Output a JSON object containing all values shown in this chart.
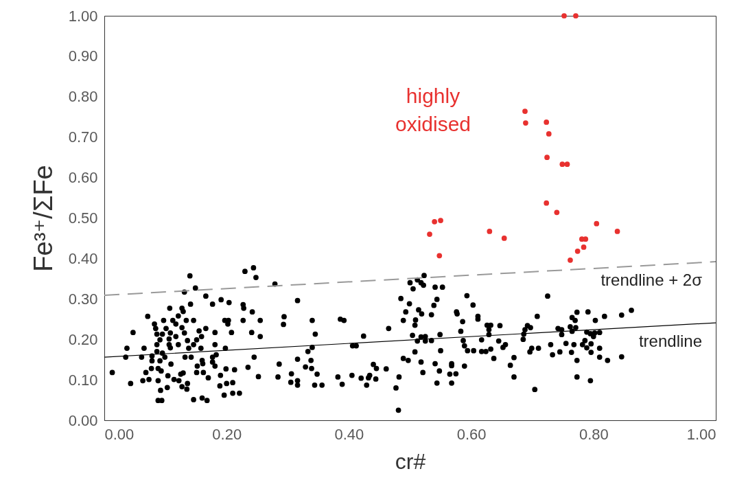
{
  "chart_data": {
    "type": "scatter",
    "xlabel": "cr#",
    "ylabel": "Fe³⁺/ΣFe",
    "marker": "circle",
    "xlim": [
      0,
      1
    ],
    "ylim": [
      0,
      1
    ],
    "xticks": [
      {
        "value": 0,
        "label": "0.00"
      },
      {
        "value": 0.2,
        "label": "0.20"
      },
      {
        "value": 0.4,
        "label": "0.40"
      },
      {
        "value": 0.6,
        "label": "0.60"
      },
      {
        "value": 0.8,
        "label": "0.80"
      },
      {
        "value": 1,
        "label": "1.00"
      }
    ],
    "yticks": [
      {
        "value": 0,
        "label": "0.00"
      },
      {
        "value": 0.1,
        "label": "0.10"
      },
      {
        "value": 0.2,
        "label": "0.20"
      },
      {
        "value": 0.3,
        "label": "0.30"
      },
      {
        "value": 0.4,
        "label": "0.40"
      },
      {
        "value": 0.5,
        "label": "0.50"
      },
      {
        "value": 0.6,
        "label": "0.60"
      },
      {
        "value": 0.7,
        "label": "0.70"
      },
      {
        "value": 0.8,
        "label": "0.80"
      },
      {
        "value": 0.9,
        "label": "0.90"
      },
      {
        "value": 1,
        "label": "1.00"
      }
    ],
    "series": [
      {
        "color": "#000000",
        "x": [
          0.14,
          0.149,
          0.131,
          0.23,
          0.244,
          0.248,
          0.279,
          0.316,
          0.166,
          0.177,
          0.191,
          0.204,
          0.227,
          0.228,
          0.242,
          0.141,
          0.107,
          0.127,
          0.129,
          0.121,
          0.071,
          0.097,
          0.112,
          0.134,
          0.146,
          0.197,
          0.203,
          0.202,
          0.227,
          0.255,
          0.294,
          0.293,
          0.082,
          0.084,
          0.117,
          0.101,
          0.127,
          0.131,
          0.047,
          0.166,
          0.155,
          0.181,
          0.208,
          0.241,
          0.255,
          0.086,
          0.095,
          0.108,
          0.117,
          0.091,
          0.106,
          0.159,
          0.151,
          0.136,
          0.146,
          0.121,
          0.086,
          0.106,
          0.181,
          0.037,
          0.065,
          0.138,
          0.158,
          0.198,
          0.108,
          0.086,
          0.095,
          0.035,
          0.061,
          0.078,
          0.099,
          0.132,
          0.142,
          0.177,
          0.183,
          0.245,
          0.333,
          0.078,
          0.091,
          0.109,
          0.16,
          0.161,
          0.177,
          0.181,
          0.286,
          0.316,
          0.329,
          0.013,
          0.068,
          0.077,
          0.088,
          0.093,
          0.152,
          0.151,
          0.162,
          0.199,
          0.213,
          0.235,
          0.19,
          0.17,
          0.129,
          0.125,
          0.104,
          0.252,
          0.284,
          0.306,
          0.043,
          0.063,
          0.073,
          0.088,
          0.114,
          0.122,
          0.136,
          0.127,
          0.135,
          0.103,
          0.092,
          0.189,
          0.2,
          0.21,
          0.316,
          0.305,
          0.316,
          0.196,
          0.21,
          0.221,
          0.146,
          0.16,
          0.168,
          0.088,
          0.094,
          0.523,
          0.512,
          0.518,
          0.522,
          0.5,
          0.505,
          0.541,
          0.553,
          0.485,
          0.544,
          0.539,
          0.499,
          0.493,
          0.514,
          0.519,
          0.535,
          0.593,
          0.603,
          0.576,
          0.577,
          0.611,
          0.611,
          0.586,
          0.489,
          0.509,
          0.508,
          0.34,
          0.386,
          0.392,
          0.345,
          0.465,
          0.424,
          0.504,
          0.518,
          0.525,
          0.512,
          0.525,
          0.535,
          0.549,
          0.583,
          0.626,
          0.632,
          0.647,
          0.629,
          0.629,
          0.617,
          0.645,
          0.587,
          0.589,
          0.656,
          0.652,
          0.34,
          0.406,
          0.412,
          0.508,
          0.55,
          0.594,
          0.604,
          0.617,
          0.624,
          0.632,
          0.637,
          0.338,
          0.489,
          0.497,
          0.518,
          0.541,
          0.568,
          0.568,
          0.589,
          0.339,
          0.44,
          0.445,
          0.461,
          0.348,
          0.382,
          0.405,
          0.42,
          0.434,
          0.432,
          0.444,
          0.482,
          0.521,
          0.548,
          0.565,
          0.575,
          0.344,
          0.356,
          0.389,
          0.429,
          0.477,
          0.544,
          0.568,
          0.481,
          0.725,
          0.708,
          0.773,
          0.791,
          0.765,
          0.77,
          0.803,
          0.818,
          0.846,
          0.862,
          0.692,
          0.697,
          0.688,
          0.686,
          0.685,
          0.742,
          0.748,
          0.748,
          0.762,
          0.765,
          0.771,
          0.789,
          0.795,
          0.802,
          0.81,
          0.8,
          0.73,
          0.755,
          0.768,
          0.782,
          0.786,
          0.796,
          0.789,
          0.71,
          0.699,
          0.696,
          0.733,
          0.745,
          0.764,
          0.796,
          0.81,
          0.81,
          0.823,
          0.846,
          0.773,
          0.67,
          0.664,
          0.67,
          0.773,
          0.795,
          0.704
        ],
        "values": [
          0.357,
          0.327,
          0.317,
          0.368,
          0.377,
          0.353,
          0.337,
          0.296,
          0.307,
          0.287,
          0.298,
          0.291,
          0.286,
          0.277,
          0.268,
          0.287,
          0.277,
          0.277,
          0.269,
          0.258,
          0.257,
          0.247,
          0.247,
          0.247,
          0.247,
          0.247,
          0.247,
          0.238,
          0.247,
          0.247,
          0.256,
          0.237,
          0.238,
          0.227,
          0.238,
          0.227,
          0.229,
          0.216,
          0.217,
          0.227,
          0.221,
          0.217,
          0.217,
          0.217,
          0.207,
          0.213,
          0.213,
          0.216,
          0.207,
          0.199,
          0.201,
          0.207,
          0.199,
          0.197,
          0.187,
          0.187,
          0.187,
          0.187,
          0.187,
          0.178,
          0.178,
          0.178,
          0.178,
          0.178,
          0.179,
          0.17,
          0.166,
          0.156,
          0.156,
          0.159,
          0.156,
          0.156,
          0.156,
          0.156,
          0.162,
          0.156,
          0.17,
          0.147,
          0.147,
          0.139,
          0.148,
          0.14,
          0.144,
          0.134,
          0.139,
          0.151,
          0.132,
          0.118,
          0.118,
          0.128,
          0.128,
          0.122,
          0.134,
          0.118,
          0.118,
          0.127,
          0.125,
          0.131,
          0.111,
          0.105,
          0.117,
          0.114,
          0.11,
          0.108,
          0.107,
          0.115,
          0.091,
          0.098,
          0.101,
          0.098,
          0.101,
          0.098,
          0.091,
          0.083,
          0.077,
          0.081,
          0.074,
          0.085,
          0.091,
          0.093,
          0.098,
          0.094,
          0.087,
          0.062,
          0.067,
          0.067,
          0.051,
          0.055,
          0.049,
          0.049,
          0.049,
          0.358,
          0.347,
          0.34,
          0.334,
          0.34,
          0.325,
          0.329,
          0.329,
          0.301,
          0.299,
          0.284,
          0.288,
          0.268,
          0.273,
          0.263,
          0.261,
          0.308,
          0.285,
          0.268,
          0.263,
          0.257,
          0.25,
          0.244,
          0.247,
          0.248,
          0.235,
          0.247,
          0.25,
          0.247,
          0.213,
          0.227,
          0.208,
          0.21,
          0.206,
          0.207,
          0.196,
          0.196,
          0.197,
          0.212,
          0.22,
          0.235,
          0.235,
          0.234,
          0.224,
          0.212,
          0.199,
          0.196,
          0.197,
          0.184,
          0.187,
          0.18,
          0.18,
          0.184,
          0.184,
          0.169,
          0.172,
          0.172,
          0.172,
          0.17,
          0.17,
          0.176,
          0.153,
          0.148,
          0.153,
          0.148,
          0.144,
          0.14,
          0.14,
          0.135,
          0.134,
          0.128,
          0.138,
          0.128,
          0.127,
          0.114,
          0.107,
          0.111,
          0.104,
          0.111,
          0.105,
          0.102,
          0.107,
          0.118,
          0.122,
          0.114,
          0.115,
          0.087,
          0.087,
          0.089,
          0.087,
          0.08,
          0.092,
          0.092,
          0.025,
          0.307,
          0.257,
          0.267,
          0.268,
          0.254,
          0.247,
          0.247,
          0.257,
          0.26,
          0.272,
          0.234,
          0.229,
          0.224,
          0.213,
          0.2,
          0.227,
          0.224,
          0.212,
          0.231,
          0.22,
          0.229,
          0.218,
          0.214,
          0.216,
          0.217,
          0.207,
          0.187,
          0.19,
          0.187,
          0.187,
          0.197,
          0.189,
          0.179,
          0.178,
          0.178,
          0.169,
          0.162,
          0.169,
          0.168,
          0.168,
          0.178,
          0.156,
          0.148,
          0.157,
          0.148,
          0.155,
          0.136,
          0.107,
          0.107,
          0.098,
          0.076
        ]
      },
      {
        "name": "highly oxidised",
        "color": "#e8312f",
        "x": [
          0.752,
          0.771,
          0.688,
          0.689,
          0.723,
          0.727,
          0.724,
          0.749,
          0.757,
          0.723,
          0.74,
          0.54,
          0.55,
          0.532,
          0.548,
          0.63,
          0.654,
          0.781,
          0.787,
          0.784,
          0.774,
          0.762,
          0.805,
          0.839
        ],
        "values": [
          1.0,
          1.0,
          0.764,
          0.735,
          0.737,
          0.708,
          0.65,
          0.633,
          0.633,
          0.537,
          0.514,
          0.491,
          0.494,
          0.46,
          0.407,
          0.467,
          0.45,
          0.448,
          0.448,
          0.428,
          0.418,
          0.396,
          0.486,
          0.467
        ]
      },
      {
        "name": "trendline",
        "type": "line",
        "color": "#000000",
        "line_style": "solid",
        "marker": "none",
        "x": [
          0,
          1
        ],
        "values": [
          0.156,
          0.241
        ]
      },
      {
        "name": "trendline + 2σ",
        "type": "line",
        "color": "#999999",
        "line_style": "dashed",
        "marker": "none",
        "x": [
          0,
          1
        ],
        "values": [
          0.309,
          0.392
        ]
      }
    ]
  }
}
